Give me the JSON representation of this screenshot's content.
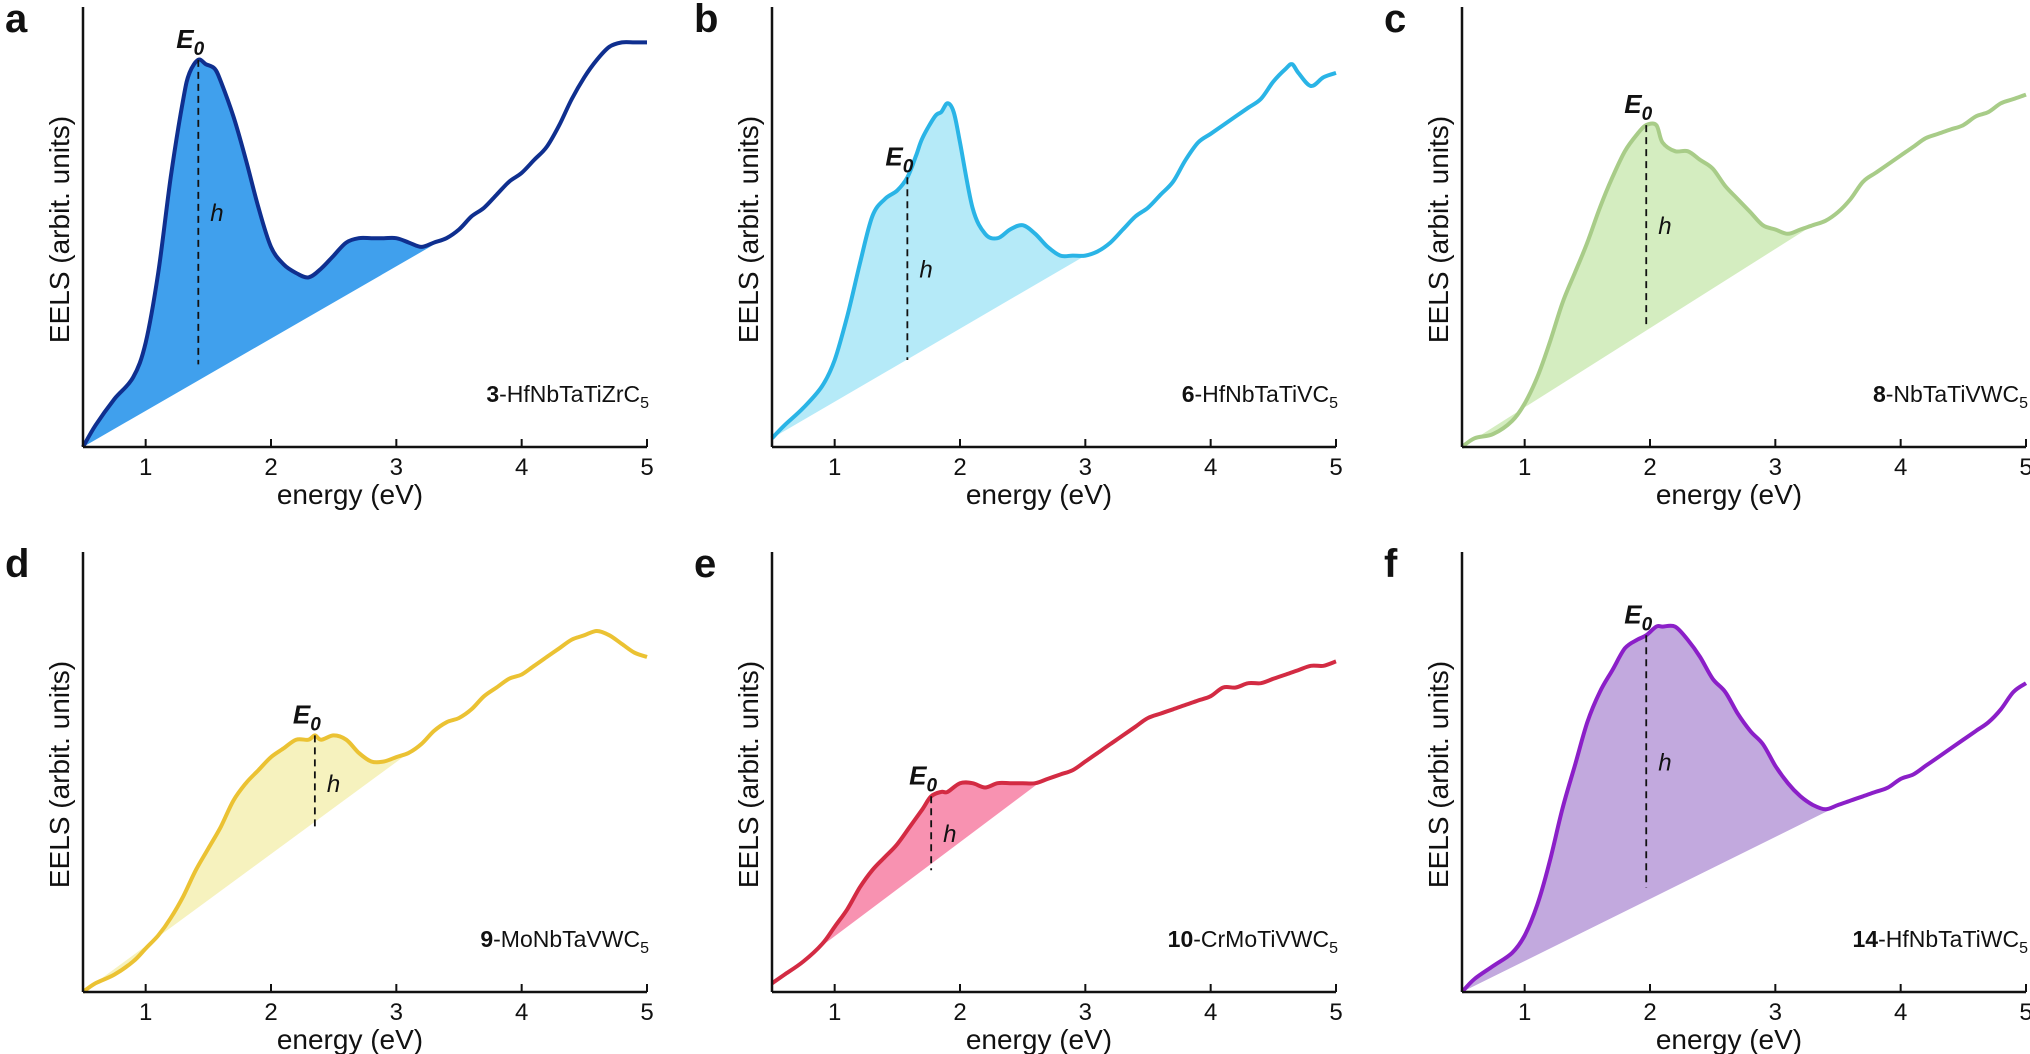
{
  "chart_data": [
    {
      "panel": "a",
      "type": "area",
      "compound_id": "3",
      "compound_formula": "HfNbTaTiZrC",
      "formula_subscript": "5",
      "xlabel": "energy (eV)",
      "ylabel": "EELS (arbit. units)",
      "xlim": [
        0.5,
        5
      ],
      "xticks": [
        "1",
        "2",
        "3",
        "4",
        "5"
      ],
      "peak_label": "E",
      "peak_label_sub": "0",
      "height_label": "h",
      "line_color": "#0f2f8f",
      "fill_color": "#1f8fea",
      "E0": 1.42,
      "peak_value": 0.89,
      "baseline_value": 0.19,
      "shade_end": 3.45,
      "x": [
        0.5,
        0.6,
        0.75,
        0.9,
        1.0,
        1.1,
        1.2,
        1.3,
        1.35,
        1.42,
        1.48,
        1.55,
        1.6,
        1.7,
        1.8,
        1.9,
        2.0,
        2.1,
        2.2,
        2.3,
        2.4,
        2.5,
        2.6,
        2.7,
        2.8,
        2.9,
        3.0,
        3.1,
        3.2,
        3.3,
        3.4,
        3.5,
        3.6,
        3.7,
        3.8,
        3.9,
        4.0,
        4.1,
        4.2,
        4.3,
        4.4,
        4.5,
        4.6,
        4.7,
        4.8,
        4.9,
        5.0
      ],
      "y": [
        0.0,
        0.05,
        0.11,
        0.16,
        0.24,
        0.4,
        0.62,
        0.8,
        0.86,
        0.89,
        0.88,
        0.87,
        0.84,
        0.76,
        0.66,
        0.55,
        0.46,
        0.42,
        0.4,
        0.39,
        0.41,
        0.44,
        0.47,
        0.48,
        0.48,
        0.48,
        0.48,
        0.47,
        0.46,
        0.47,
        0.48,
        0.5,
        0.53,
        0.55,
        0.58,
        0.61,
        0.63,
        0.66,
        0.69,
        0.74,
        0.8,
        0.85,
        0.89,
        0.92,
        0.93,
        0.93,
        0.93
      ]
    },
    {
      "panel": "b",
      "type": "area",
      "compound_id": "6",
      "compound_formula": "HfNbTaTiVC",
      "formula_subscript": "5",
      "xlabel": "energy (eV)",
      "ylabel": "EELS (arbit. units)",
      "xlim": [
        0.5,
        5
      ],
      "xticks": [
        "1",
        "2",
        "3",
        "4",
        "5"
      ],
      "peak_label": "E",
      "peak_label_sub": "0",
      "height_label": "h",
      "line_color": "#2ab4e6",
      "fill_color": "#a8e6f7",
      "E0": 1.58,
      "peak_value": 0.62,
      "baseline_value": 0.2,
      "shade_end": 3.0,
      "x": [
        0.5,
        0.6,
        0.75,
        0.9,
        1.0,
        1.1,
        1.2,
        1.3,
        1.4,
        1.5,
        1.58,
        1.65,
        1.7,
        1.8,
        1.85,
        1.9,
        1.95,
        2.0,
        2.1,
        2.2,
        2.3,
        2.4,
        2.5,
        2.6,
        2.7,
        2.8,
        2.9,
        3.0,
        3.1,
        3.2,
        3.3,
        3.4,
        3.5,
        3.6,
        3.7,
        3.8,
        3.9,
        4.0,
        4.1,
        4.2,
        4.3,
        4.4,
        4.5,
        4.6,
        4.65,
        4.7,
        4.8,
        4.9,
        5.0
      ],
      "y": [
        0.02,
        0.05,
        0.09,
        0.14,
        0.2,
        0.3,
        0.42,
        0.53,
        0.57,
        0.59,
        0.62,
        0.67,
        0.71,
        0.76,
        0.77,
        0.79,
        0.77,
        0.7,
        0.55,
        0.49,
        0.48,
        0.5,
        0.51,
        0.49,
        0.46,
        0.44,
        0.44,
        0.44,
        0.45,
        0.47,
        0.5,
        0.53,
        0.55,
        0.58,
        0.61,
        0.66,
        0.7,
        0.72,
        0.74,
        0.76,
        0.78,
        0.8,
        0.84,
        0.87,
        0.88,
        0.86,
        0.83,
        0.85,
        0.86
      ]
    },
    {
      "panel": "c",
      "type": "area",
      "compound_id": "8",
      "compound_formula": "NbTaTiVWC",
      "formula_subscript": "5",
      "xlabel": "energy (eV)",
      "ylabel": "EELS (arbit. units)",
      "xlim": [
        0.5,
        5
      ],
      "xticks": [
        "1",
        "2",
        "3",
        "4",
        "5"
      ],
      "peak_label": "E",
      "peak_label_sub": "0",
      "height_label": "h",
      "line_color": "#a8cc88",
      "fill_color": "#cdeab5",
      "E0": 1.97,
      "peak_value": 0.74,
      "baseline_value": 0.28,
      "shade_end": 3.3,
      "x": [
        0.5,
        0.6,
        0.75,
        0.9,
        1.0,
        1.1,
        1.2,
        1.3,
        1.4,
        1.5,
        1.6,
        1.7,
        1.8,
        1.9,
        1.97,
        2.05,
        2.1,
        2.2,
        2.3,
        2.4,
        2.5,
        2.6,
        2.7,
        2.8,
        2.9,
        3.0,
        3.1,
        3.2,
        3.3,
        3.4,
        3.5,
        3.6,
        3.7,
        3.8,
        3.9,
        4.0,
        4.1,
        4.2,
        4.3,
        4.4,
        4.5,
        4.6,
        4.7,
        4.8,
        4.9,
        5.0
      ],
      "y": [
        0.0,
        0.02,
        0.03,
        0.06,
        0.1,
        0.16,
        0.24,
        0.33,
        0.4,
        0.47,
        0.55,
        0.62,
        0.68,
        0.72,
        0.74,
        0.74,
        0.7,
        0.68,
        0.68,
        0.66,
        0.64,
        0.6,
        0.57,
        0.54,
        0.51,
        0.5,
        0.49,
        0.5,
        0.51,
        0.52,
        0.54,
        0.57,
        0.61,
        0.63,
        0.65,
        0.67,
        0.69,
        0.71,
        0.72,
        0.73,
        0.74,
        0.76,
        0.77,
        0.79,
        0.8,
        0.81
      ]
    },
    {
      "panel": "d",
      "type": "area",
      "compound_id": "9",
      "compound_formula": "MoNbTaVWC",
      "formula_subscript": "5",
      "xlabel": "energy (eV)",
      "ylabel": "EELS (arbit. units)",
      "xlim": [
        0.5,
        5
      ],
      "xticks": [
        "1",
        "2",
        "3",
        "4",
        "5"
      ],
      "peak_label": "E",
      "peak_label_sub": "0",
      "height_label": "h",
      "line_color": "#ebc233",
      "fill_color": "#f5f0b3",
      "E0": 2.35,
      "peak_value": 0.59,
      "baseline_value": 0.37,
      "shade_end": 3.1,
      "x": [
        0.5,
        0.6,
        0.75,
        0.9,
        1.0,
        1.1,
        1.2,
        1.3,
        1.4,
        1.5,
        1.6,
        1.7,
        1.8,
        1.9,
        2.0,
        2.1,
        2.2,
        2.3,
        2.35,
        2.4,
        2.5,
        2.6,
        2.7,
        2.8,
        2.9,
        3.0,
        3.1,
        3.2,
        3.3,
        3.4,
        3.5,
        3.6,
        3.7,
        3.8,
        3.9,
        4.0,
        4.1,
        4.2,
        4.3,
        4.4,
        4.5,
        4.6,
        4.7,
        4.8,
        4.9,
        5.0
      ],
      "y": [
        0.0,
        0.02,
        0.04,
        0.07,
        0.1,
        0.13,
        0.17,
        0.22,
        0.28,
        0.33,
        0.38,
        0.44,
        0.48,
        0.51,
        0.54,
        0.56,
        0.58,
        0.58,
        0.59,
        0.58,
        0.59,
        0.58,
        0.55,
        0.53,
        0.53,
        0.54,
        0.55,
        0.57,
        0.6,
        0.62,
        0.63,
        0.65,
        0.68,
        0.7,
        0.72,
        0.73,
        0.75,
        0.77,
        0.79,
        0.81,
        0.82,
        0.83,
        0.82,
        0.8,
        0.78,
        0.77
      ]
    },
    {
      "panel": "e",
      "type": "area",
      "compound_id": "10",
      "compound_formula": "CrMoTiVWC",
      "formula_subscript": "5",
      "xlabel": "energy (eV)",
      "ylabel": "EELS (arbit. units)",
      "xlim": [
        0.5,
        5
      ],
      "xticks": [
        "1",
        "2",
        "3",
        "4",
        "5"
      ],
      "peak_label": "E",
      "peak_label_sub": "0",
      "height_label": "h",
      "line_color": "#d32b43",
      "fill_color": "#f77fa3",
      "E0": 1.77,
      "peak_value": 0.45,
      "baseline_value": 0.28,
      "shade_end": 2.65,
      "x": [
        0.5,
        0.6,
        0.75,
        0.9,
        1.0,
        1.1,
        1.2,
        1.3,
        1.4,
        1.5,
        1.6,
        1.7,
        1.77,
        1.85,
        1.9,
        2.0,
        2.1,
        2.2,
        2.3,
        2.4,
        2.5,
        2.6,
        2.7,
        2.8,
        2.9,
        3.0,
        3.1,
        3.2,
        3.3,
        3.4,
        3.5,
        3.6,
        3.7,
        3.8,
        3.9,
        4.0,
        4.1,
        4.2,
        4.3,
        4.4,
        4.5,
        4.6,
        4.7,
        4.8,
        4.9,
        5.0
      ],
      "y": [
        0.02,
        0.04,
        0.07,
        0.11,
        0.15,
        0.19,
        0.24,
        0.28,
        0.31,
        0.34,
        0.38,
        0.42,
        0.45,
        0.46,
        0.46,
        0.48,
        0.48,
        0.47,
        0.48,
        0.48,
        0.48,
        0.48,
        0.49,
        0.5,
        0.51,
        0.53,
        0.55,
        0.57,
        0.59,
        0.61,
        0.63,
        0.64,
        0.65,
        0.66,
        0.67,
        0.68,
        0.7,
        0.7,
        0.71,
        0.71,
        0.72,
        0.73,
        0.74,
        0.75,
        0.75,
        0.76
      ]
    },
    {
      "panel": "f",
      "type": "area",
      "compound_id": "14",
      "compound_formula": "HfNbTaTiWC",
      "formula_subscript": "5",
      "xlabel": "energy (eV)",
      "ylabel": "EELS (arbit. units)",
      "xlim": [
        0.5,
        5
      ],
      "xticks": [
        "1",
        "2",
        "3",
        "4",
        "5"
      ],
      "peak_label": "E",
      "peak_label_sub": "0",
      "height_label": "h",
      "line_color": "#8b1fc8",
      "fill_color": "#b79ad8",
      "E0": 1.97,
      "peak_value": 0.82,
      "baseline_value": 0.24,
      "shade_end": 3.55,
      "x": [
        0.5,
        0.6,
        0.75,
        0.9,
        1.0,
        1.1,
        1.2,
        1.3,
        1.4,
        1.5,
        1.6,
        1.7,
        1.8,
        1.9,
        1.97,
        2.05,
        2.1,
        2.2,
        2.3,
        2.4,
        2.5,
        2.6,
        2.7,
        2.8,
        2.9,
        3.0,
        3.1,
        3.2,
        3.3,
        3.4,
        3.5,
        3.6,
        3.7,
        3.8,
        3.9,
        4.0,
        4.1,
        4.2,
        4.3,
        4.4,
        4.5,
        4.6,
        4.7,
        4.8,
        4.9,
        5.0
      ],
      "y": [
        0.0,
        0.03,
        0.06,
        0.09,
        0.13,
        0.2,
        0.3,
        0.42,
        0.52,
        0.62,
        0.69,
        0.74,
        0.79,
        0.81,
        0.82,
        0.84,
        0.84,
        0.84,
        0.81,
        0.77,
        0.72,
        0.69,
        0.64,
        0.6,
        0.57,
        0.52,
        0.48,
        0.45,
        0.43,
        0.42,
        0.43,
        0.44,
        0.45,
        0.46,
        0.47,
        0.49,
        0.5,
        0.52,
        0.54,
        0.56,
        0.58,
        0.6,
        0.62,
        0.65,
        0.69,
        0.71
      ]
    }
  ]
}
